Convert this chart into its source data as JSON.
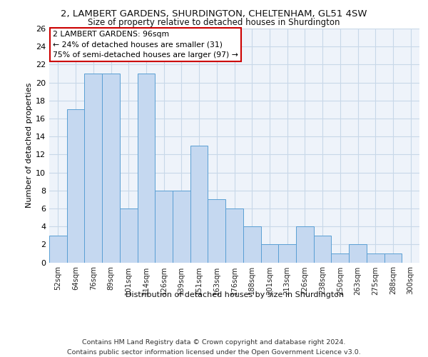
{
  "title": "2, LAMBERT GARDENS, SHURDINGTON, CHELTENHAM, GL51 4SW",
  "subtitle": "Size of property relative to detached houses in Shurdington",
  "xlabel": "Distribution of detached houses by size in Shurdington",
  "ylabel": "Number of detached properties",
  "bin_labels": [
    "52sqm",
    "64sqm",
    "76sqm",
    "89sqm",
    "101sqm",
    "114sqm",
    "126sqm",
    "139sqm",
    "151sqm",
    "163sqm",
    "176sqm",
    "188sqm",
    "201sqm",
    "213sqm",
    "226sqm",
    "238sqm",
    "250sqm",
    "263sqm",
    "275sqm",
    "288sqm",
    "300sqm"
  ],
  "bar_heights": [
    3,
    17,
    21,
    21,
    6,
    21,
    8,
    8,
    13,
    7,
    6,
    4,
    2,
    2,
    4,
    3,
    1,
    2,
    1,
    1,
    0
  ],
  "bar_color": "#c5d8f0",
  "bar_edge_color": "#5a9fd4",
  "annotation_text": "2 LAMBERT GARDENS: 96sqm\n← 24% of detached houses are smaller (31)\n75% of semi-detached houses are larger (97) →",
  "annotation_box_color": "#ffffff",
  "annotation_box_edge_color": "#cc0000",
  "property_size_sqm": 96,
  "ylim": [
    0,
    26
  ],
  "yticks": [
    0,
    2,
    4,
    6,
    8,
    10,
    12,
    14,
    16,
    18,
    20,
    22,
    24,
    26
  ],
  "footer_text": "Contains HM Land Registry data © Crown copyright and database right 2024.\nContains public sector information licensed under the Open Government Licence v3.0.",
  "background_color": "#ffffff",
  "grid_color": "#c8d8e8",
  "axes_facecolor": "#eef3fa"
}
